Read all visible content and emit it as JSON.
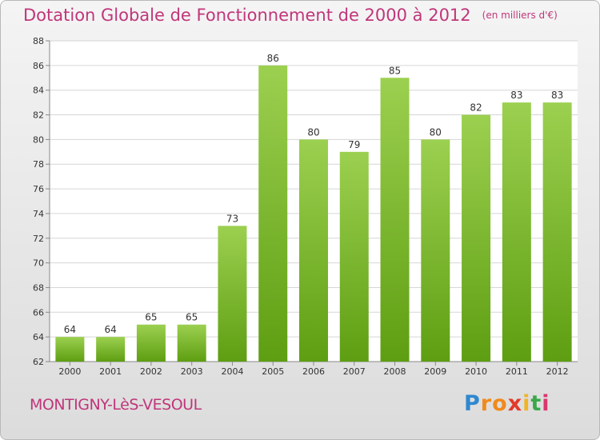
{
  "chart_data": {
    "type": "bar",
    "title": "Dotation Globale de Fonctionnement de 2000 à 2012",
    "subtitle": "(en milliers d'€)",
    "categories": [
      "2000",
      "2001",
      "2002",
      "2003",
      "2004",
      "2005",
      "2006",
      "2007",
      "2008",
      "2009",
      "2010",
      "2011",
      "2012"
    ],
    "values": [
      64,
      64,
      65,
      65,
      73,
      86,
      80,
      79,
      85,
      80,
      82,
      83,
      83
    ],
    "ylim": [
      62,
      88
    ],
    "yticks": [
      62,
      64,
      66,
      68,
      70,
      72,
      74,
      76,
      78,
      80,
      82,
      84,
      86,
      88
    ],
    "grid": true,
    "bar_color_top": "#9cd050",
    "bar_color_bottom": "#5e9e12"
  },
  "commune": "MONTIGNY-LèS-VESOUL",
  "logo": {
    "letters": [
      "P",
      "r",
      "o",
      "x",
      "i",
      "t",
      "i"
    ],
    "colors": [
      "#2e88d0",
      "#f08a1c",
      "#f08a1c",
      "#e23a2a",
      "#f0b424",
      "#3aa84a",
      "#d9386e"
    ]
  }
}
